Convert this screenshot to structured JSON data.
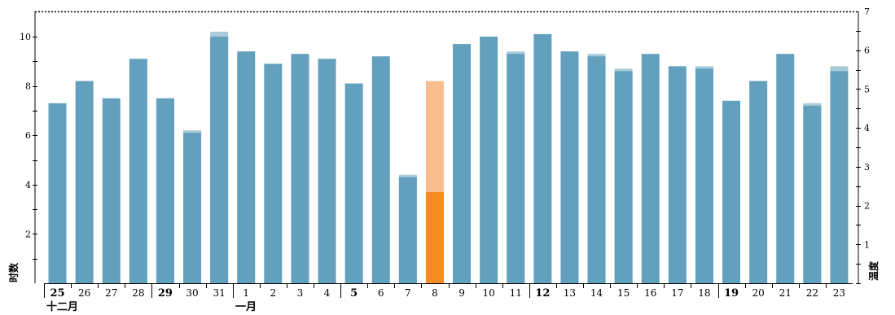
{
  "chart_data": {
    "type": "bar",
    "y_left_label": "时数",
    "y_right_label": "温度",
    "y_left_range": [
      0,
      11
    ],
    "y_right_range": [
      0,
      7
    ],
    "y_left_ticks": [
      "2",
      "4",
      "6",
      "8",
      "10"
    ],
    "y_right_ticks": [
      "1",
      "2",
      "3",
      "4",
      "5",
      "6",
      "7"
    ],
    "months": [
      {
        "label": "十二月",
        "at": "25"
      },
      {
        "label": "一月",
        "at": "1"
      }
    ],
    "days": [
      {
        "label": "25",
        "bold": true,
        "value": 7.3,
        "outer": 7.3
      },
      {
        "label": "26",
        "bold": false,
        "value": 8.2,
        "outer": 8.2
      },
      {
        "label": "27",
        "bold": false,
        "value": 7.5,
        "outer": 7.5
      },
      {
        "label": "28",
        "bold": false,
        "value": 9.1,
        "outer": 9.1
      },
      {
        "label": "29",
        "bold": true,
        "value": 7.5,
        "outer": 7.5
      },
      {
        "label": "30",
        "bold": false,
        "value": 6.1,
        "outer": 6.2
      },
      {
        "label": "31",
        "bold": false,
        "value": 10.0,
        "outer": 10.2
      },
      {
        "label": "1",
        "bold": false,
        "value": 9.4,
        "outer": 9.4
      },
      {
        "label": "2",
        "bold": false,
        "value": 8.9,
        "outer": 8.9
      },
      {
        "label": "3",
        "bold": false,
        "value": 9.3,
        "outer": 9.3
      },
      {
        "label": "4",
        "bold": false,
        "value": 9.1,
        "outer": 9.1
      },
      {
        "label": "5",
        "bold": true,
        "value": 8.1,
        "outer": 8.1
      },
      {
        "label": "6",
        "bold": false,
        "value": 9.2,
        "outer": 9.2
      },
      {
        "label": "7",
        "bold": false,
        "value": 4.3,
        "outer": 4.4
      },
      {
        "label": "8",
        "bold": false,
        "value": 3.7,
        "outer": 8.2,
        "highlight": true
      },
      {
        "label": "9",
        "bold": false,
        "value": 9.7,
        "outer": 9.7
      },
      {
        "label": "10",
        "bold": false,
        "value": 10.0,
        "outer": 10.0
      },
      {
        "label": "11",
        "bold": false,
        "value": 9.3,
        "outer": 9.4
      },
      {
        "label": "12",
        "bold": true,
        "value": 10.1,
        "outer": 10.1
      },
      {
        "label": "13",
        "bold": false,
        "value": 9.4,
        "outer": 9.4
      },
      {
        "label": "14",
        "bold": false,
        "value": 9.2,
        "outer": 9.3
      },
      {
        "label": "15",
        "bold": false,
        "value": 8.6,
        "outer": 8.7
      },
      {
        "label": "16",
        "bold": false,
        "value": 9.3,
        "outer": 9.3
      },
      {
        "label": "17",
        "bold": false,
        "value": 8.8,
        "outer": 8.8
      },
      {
        "label": "18",
        "bold": false,
        "value": 8.7,
        "outer": 8.8
      },
      {
        "label": "19",
        "bold": true,
        "value": 7.4,
        "outer": 7.4
      },
      {
        "label": "20",
        "bold": false,
        "value": 8.2,
        "outer": 8.2
      },
      {
        "label": "21",
        "bold": false,
        "value": 9.3,
        "outer": 9.3
      },
      {
        "label": "22",
        "bold": false,
        "value": 7.2,
        "outer": 7.3
      },
      {
        "label": "23",
        "bold": false,
        "value": 8.6,
        "outer": 8.8
      }
    ],
    "reference_line": {
      "axis": "right",
      "value": 7,
      "style": "dotted"
    },
    "colors": {
      "bar": "#62a0bd",
      "bar_light": "#a9cbda",
      "highlight": "#f68b1f",
      "highlight_light": "#f8bd8d"
    }
  }
}
